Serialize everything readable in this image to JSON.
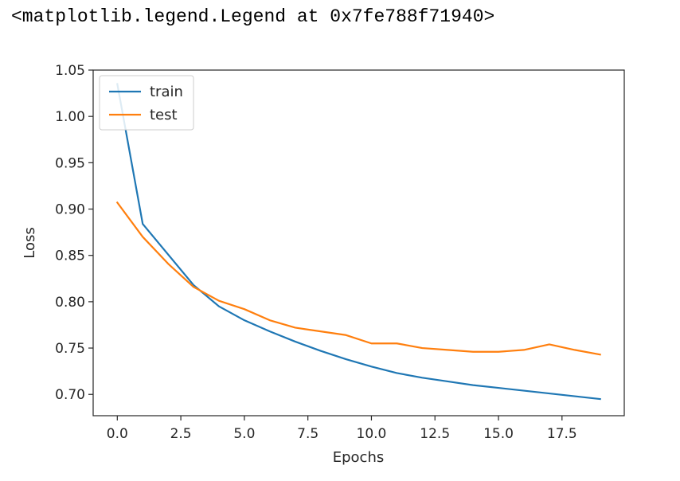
{
  "output_text": "<matplotlib.legend.Legend at 0x7fe788f71940>",
  "chart_data": {
    "type": "line",
    "xlabel": "Epochs",
    "ylabel": "Loss",
    "xlim": [
      -0.95,
      19.95
    ],
    "ylim": [
      0.677,
      1.05
    ],
    "xticks": [
      0.0,
      2.5,
      5.0,
      7.5,
      10.0,
      12.5,
      15.0,
      17.5
    ],
    "xtick_labels": [
      "0.0",
      "2.5",
      "5.0",
      "7.5",
      "10.0",
      "12.5",
      "15.0",
      "17.5"
    ],
    "yticks": [
      0.7,
      0.75,
      0.8,
      0.85,
      0.9,
      0.95,
      1.0,
      1.05
    ],
    "ytick_labels": [
      "0.70",
      "0.75",
      "0.80",
      "0.85",
      "0.90",
      "0.95",
      "1.00",
      "1.05"
    ],
    "x": [
      0,
      1,
      2,
      3,
      4,
      5,
      6,
      7,
      8,
      9,
      10,
      11,
      12,
      13,
      14,
      15,
      16,
      17,
      18,
      19
    ],
    "series": [
      {
        "name": "train",
        "color": "#1f77b4",
        "values": [
          1.035,
          0.884,
          0.851,
          0.818,
          0.795,
          0.78,
          0.768,
          0.757,
          0.747,
          0.738,
          0.73,
          0.723,
          0.718,
          0.714,
          0.71,
          0.707,
          0.704,
          0.701,
          0.698,
          0.695
        ]
      },
      {
        "name": "test",
        "color": "#ff7f0e",
        "values": [
          0.907,
          0.87,
          0.841,
          0.816,
          0.801,
          0.792,
          0.78,
          0.772,
          0.768,
          0.764,
          0.755,
          0.755,
          0.75,
          0.748,
          0.746,
          0.746,
          0.748,
          0.754,
          0.748,
          0.743
        ]
      }
    ],
    "legend_position": "upper left",
    "grid": false
  }
}
